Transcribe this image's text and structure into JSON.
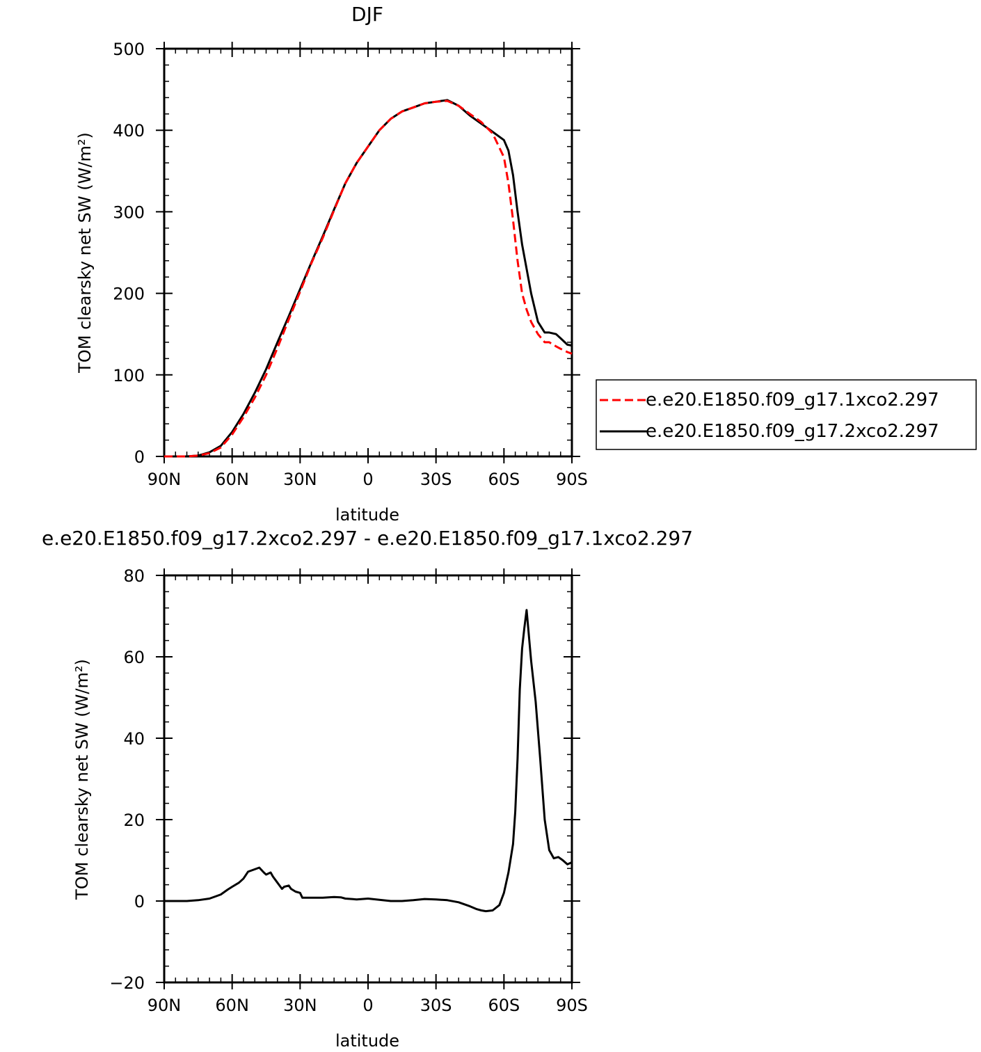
{
  "chart_data": [
    {
      "type": "line",
      "title": "DJF",
      "xlabel": "latitude",
      "ylabel": "TOM clearsky net SW (W/m²)",
      "xlim": [
        -90,
        90
      ],
      "ylim": [
        0,
        500
      ],
      "xticks": [
        -90,
        -60,
        -30,
        0,
        30,
        60,
        90
      ],
      "xtick_labels": [
        "90N",
        "60N",
        "30N",
        "0",
        "30S",
        "60S",
        "90S"
      ],
      "yticks": [
        0,
        100,
        200,
        300,
        400,
        500
      ],
      "ytick_labels": [
        "0",
        "100",
        "200",
        "300",
        "400",
        "500"
      ],
      "legend_position": "right",
      "series": [
        {
          "name": "e.e20.E1850.f09_g17.1xco2.297",
          "color": "#ff0000",
          "style": "dashed",
          "x": [
            -90,
            -85,
            -80,
            -75,
            -70,
            -65,
            -60,
            -55,
            -50,
            -45,
            -40,
            -35,
            -30,
            -25,
            -20,
            -15,
            -10,
            -5,
            0,
            5,
            10,
            15,
            20,
            25,
            30,
            35,
            40,
            45,
            50,
            55,
            60,
            62,
            64,
            66,
            68,
            70,
            72,
            75,
            78,
            80,
            83,
            85,
            88,
            90
          ],
          "y": [
            0,
            0,
            0,
            1,
            4,
            11,
            27,
            48,
            72,
            100,
            133,
            168,
            202,
            237,
            268,
            302,
            335,
            360,
            380,
            400,
            414,
            423,
            428,
            433,
            435,
            436,
            430,
            420,
            410,
            396,
            367,
            335,
            290,
            240,
            200,
            180,
            165,
            150,
            140,
            140,
            135,
            132,
            128,
            126
          ]
        },
        {
          "name": "e.e20.E1850.f09_g17.2xco2.297",
          "color": "#000000",
          "style": "solid",
          "x": [
            -90,
            -85,
            -80,
            -75,
            -70,
            -65,
            -60,
            -55,
            -50,
            -45,
            -40,
            -35,
            -30,
            -25,
            -20,
            -15,
            -10,
            -5,
            0,
            5,
            10,
            15,
            20,
            25,
            30,
            35,
            40,
            45,
            50,
            55,
            60,
            62,
            64,
            66,
            68,
            70,
            72,
            75,
            78,
            80,
            83,
            85,
            88,
            90
          ],
          "y": [
            0,
            0,
            0,
            1,
            5,
            13,
            30,
            52,
            78,
            107,
            140,
            172,
            205,
            238,
            270,
            303,
            335,
            360,
            380,
            400,
            414,
            423,
            428,
            433,
            435,
            437,
            430,
            418,
            408,
            398,
            388,
            375,
            345,
            300,
            260,
            230,
            200,
            165,
            152,
            152,
            150,
            145,
            137,
            136
          ]
        }
      ]
    },
    {
      "type": "line",
      "title": "e.e20.E1850.f09_g17.2xco2.297 - e.e20.E1850.f09_g17.1xco2.297",
      "xlabel": "latitude",
      "ylabel": "TOM clearsky net SW (W/m²)",
      "xlim": [
        -90,
        90
      ],
      "ylim": [
        -20,
        80
      ],
      "xticks": [
        -90,
        -60,
        -30,
        0,
        30,
        60,
        90
      ],
      "xtick_labels": [
        "90N",
        "60N",
        "30N",
        "0",
        "30S",
        "60S",
        "90S"
      ],
      "yticks": [
        -20,
        0,
        20,
        40,
        60,
        80
      ],
      "ytick_labels": [
        "−20",
        "0",
        "20",
        "40",
        "60",
        "80"
      ],
      "series": [
        {
          "color": "#000000",
          "style": "solid",
          "x": [
            -90,
            -80,
            -75,
            -70,
            -67,
            -65,
            -62,
            -60,
            -57,
            -55,
            -53,
            -50,
            -48,
            -46,
            -45,
            -43,
            -42,
            -40,
            -38,
            -37,
            -35,
            -34,
            -32,
            -30,
            -29,
            -25,
            -20,
            -15,
            -12,
            -10,
            -5,
            0,
            5,
            10,
            15,
            20,
            25,
            30,
            35,
            40,
            45,
            48,
            50,
            52,
            55,
            58,
            60,
            62,
            64,
            65,
            66,
            67,
            68,
            69,
            70,
            72,
            74,
            76,
            78,
            80,
            82,
            84,
            86,
            88,
            90
          ],
          "y": [
            0,
            0,
            0.2,
            0.6,
            1.2,
            1.6,
            2.8,
            3.5,
            4.5,
            5.5,
            7.2,
            7.8,
            8.2,
            7.0,
            6.5,
            7.0,
            6.0,
            4.5,
            3.0,
            3.5,
            3.8,
            3.0,
            2.3,
            2.0,
            0.8,
            0.8,
            0.8,
            1.0,
            0.9,
            0.6,
            0.4,
            0.6,
            0.3,
            0.0,
            0.0,
            0.2,
            0.5,
            0.4,
            0.2,
            -0.3,
            -1.3,
            -2.0,
            -2.3,
            -2.5,
            -2.3,
            -1.0,
            2.0,
            7.0,
            14.0,
            22.0,
            35.0,
            52.0,
            62.0,
            67.0,
            71.5,
            59.0,
            49.0,
            35.0,
            20.0,
            12.5,
            10.5,
            10.8,
            10.0,
            9.0,
            9.5
          ]
        }
      ]
    }
  ]
}
